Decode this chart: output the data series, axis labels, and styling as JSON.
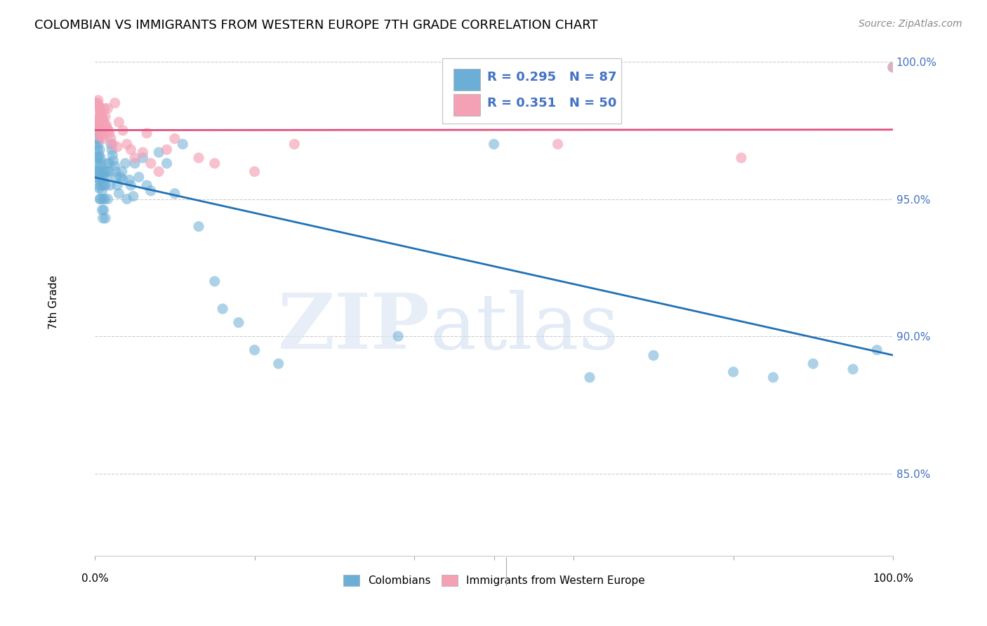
{
  "title": "COLOMBIAN VS IMMIGRANTS FROM WESTERN EUROPE 7TH GRADE CORRELATION CHART",
  "source": "Source: ZipAtlas.com",
  "ylabel": "7th Grade",
  "right_yticks": [
    85.0,
    90.0,
    95.0,
    100.0
  ],
  "right_ytick_labels": [
    "85.0%",
    "90.0%",
    "95.0%",
    "100.0%"
  ],
  "colombian_color": "#6baed6",
  "western_europe_color": "#f4a0b5",
  "trendline_colombian_color": "#2171b5",
  "trendline_western_europe_color": "#e05080",
  "R_colombian": 0.295,
  "N_colombian": 87,
  "R_western_europe": 0.351,
  "N_western_europe": 50,
  "watermark_zip": "ZIP",
  "watermark_atlas": "atlas",
  "xlim": [
    0.0,
    1.0
  ],
  "ylim": [
    0.82,
    1.005
  ],
  "colombian_x": [
    0.001,
    0.002,
    0.002,
    0.002,
    0.003,
    0.003,
    0.003,
    0.003,
    0.004,
    0.004,
    0.004,
    0.004,
    0.004,
    0.005,
    0.005,
    0.005,
    0.005,
    0.006,
    0.006,
    0.006,
    0.006,
    0.007,
    0.007,
    0.007,
    0.008,
    0.008,
    0.009,
    0.009,
    0.009,
    0.01,
    0.01,
    0.01,
    0.011,
    0.011,
    0.012,
    0.012,
    0.013,
    0.013,
    0.014,
    0.015,
    0.016,
    0.016,
    0.017,
    0.018,
    0.019,
    0.02,
    0.021,
    0.022,
    0.023,
    0.025,
    0.026,
    0.027,
    0.028,
    0.03,
    0.032,
    0.034,
    0.035,
    0.038,
    0.04,
    0.043,
    0.045,
    0.048,
    0.05,
    0.055,
    0.06,
    0.065,
    0.07,
    0.08,
    0.09,
    0.1,
    0.11,
    0.13,
    0.15,
    0.16,
    0.18,
    0.2,
    0.23,
    0.38,
    0.5,
    0.62,
    0.7,
    0.8,
    0.85,
    0.9,
    0.95,
    0.98,
    1.0
  ],
  "colombian_y": [
    0.97,
    0.975,
    0.965,
    0.96,
    0.972,
    0.968,
    0.963,
    0.958,
    0.975,
    0.97,
    0.965,
    0.96,
    0.955,
    0.972,
    0.966,
    0.96,
    0.954,
    0.968,
    0.962,
    0.957,
    0.95,
    0.965,
    0.958,
    0.95,
    0.963,
    0.955,
    0.96,
    0.953,
    0.946,
    0.958,
    0.95,
    0.943,
    0.955,
    0.946,
    0.96,
    0.95,
    0.955,
    0.943,
    0.96,
    0.958,
    0.963,
    0.95,
    0.96,
    0.963,
    0.955,
    0.97,
    0.968,
    0.966,
    0.964,
    0.962,
    0.96,
    0.958,
    0.955,
    0.952,
    0.958,
    0.96,
    0.957,
    0.963,
    0.95,
    0.957,
    0.955,
    0.951,
    0.963,
    0.958,
    0.965,
    0.955,
    0.953,
    0.967,
    0.963,
    0.952,
    0.97,
    0.94,
    0.92,
    0.91,
    0.905,
    0.895,
    0.89,
    0.9,
    0.97,
    0.885,
    0.893,
    0.887,
    0.885,
    0.89,
    0.888,
    0.895,
    0.998
  ],
  "western_europe_x": [
    0.001,
    0.002,
    0.002,
    0.003,
    0.003,
    0.004,
    0.004,
    0.004,
    0.005,
    0.005,
    0.006,
    0.006,
    0.007,
    0.007,
    0.008,
    0.008,
    0.009,
    0.009,
    0.01,
    0.01,
    0.011,
    0.012,
    0.013,
    0.014,
    0.015,
    0.016,
    0.017,
    0.018,
    0.02,
    0.022,
    0.025,
    0.028,
    0.03,
    0.035,
    0.04,
    0.045,
    0.05,
    0.06,
    0.065,
    0.07,
    0.08,
    0.09,
    0.1,
    0.13,
    0.15,
    0.2,
    0.25,
    0.58,
    0.81,
    1.0
  ],
  "western_europe_y": [
    0.985,
    0.982,
    0.979,
    0.985,
    0.978,
    0.986,
    0.979,
    0.973,
    0.984,
    0.977,
    0.983,
    0.976,
    0.982,
    0.975,
    0.981,
    0.974,
    0.98,
    0.973,
    0.979,
    0.972,
    0.978,
    0.983,
    0.98,
    0.977,
    0.976,
    0.983,
    0.975,
    0.974,
    0.972,
    0.97,
    0.985,
    0.969,
    0.978,
    0.975,
    0.97,
    0.968,
    0.965,
    0.967,
    0.974,
    0.963,
    0.96,
    0.968,
    0.972,
    0.965,
    0.963,
    0.96,
    0.97,
    0.97,
    0.965,
    0.998
  ]
}
